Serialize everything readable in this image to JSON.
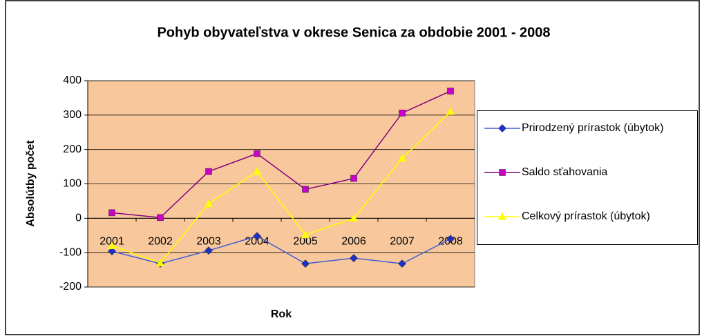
{
  "chart_data": {
    "type": "line",
    "title": "Pohyb obyvateľstva v okrese Senica za obdobie 2001 - 2008",
    "x_label": "Rok",
    "y_label": "Absolútby počet",
    "categories": [
      "2001",
      "2002",
      "2003",
      "2004",
      "2005",
      "2006",
      "2007",
      "2008"
    ],
    "series": [
      {
        "name": "Prirodzený prírastok (úbytok)",
        "color": "#3d5bd6",
        "marker_color": "#1f2fcc",
        "marker": "diamond",
        "values": [
          -96,
          -132,
          -94,
          -52,
          -132,
          -116,
          -132,
          -60
        ]
      },
      {
        "name": "Saldo sťahovania",
        "color": "#800080",
        "marker_color": "#cc00cc",
        "marker": "square",
        "values": [
          16,
          2,
          136,
          188,
          84,
          116,
          306,
          370
        ]
      },
      {
        "name": "Celkový prírastok (úbytok)",
        "color": "#ffff00",
        "marker_color": "#ffff00",
        "marker": "triangle",
        "values": [
          -80,
          -130,
          42,
          136,
          -48,
          0,
          174,
          310
        ]
      }
    ],
    "ylim": [
      -200,
      400
    ],
    "yticks": [
      -200,
      -100,
      0,
      100,
      200,
      300,
      400
    ],
    "grid": true,
    "plot_background": "#f8c89c"
  }
}
